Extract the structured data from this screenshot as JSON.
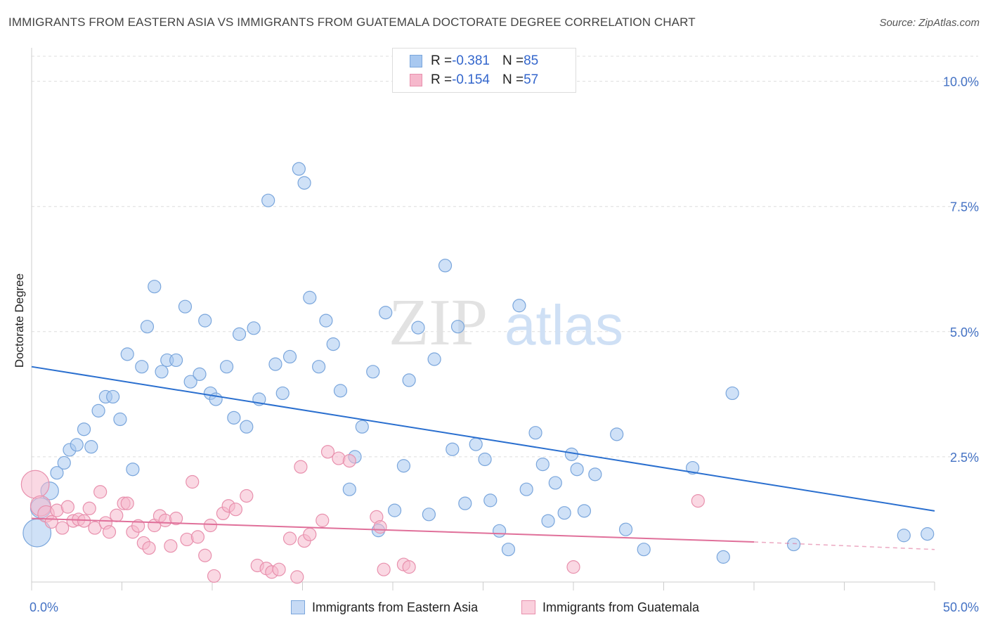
{
  "title": "IMMIGRANTS FROM EASTERN ASIA VS IMMIGRANTS FROM GUATEMALA DOCTORATE DEGREE CORRELATION CHART",
  "source": "Source: ZipAtlas.com",
  "watermark": {
    "zip": "ZIP",
    "atlas": "atlas"
  },
  "colors": {
    "blue_fill": "#a8c8f0",
    "blue_stroke": "#7aa6dc",
    "blue_line": "#2a6fcf",
    "pink_fill": "#f6b8cc",
    "pink_stroke": "#e890ad",
    "pink_line": "#e0709a",
    "grid": "#dddddd",
    "tick_label": "#4472c4"
  },
  "legend": {
    "blue": {
      "r_label": "R = ",
      "r_value": "-0.381",
      "n_label": "N = ",
      "n_value": "85"
    },
    "pink": {
      "r_label": "R = ",
      "r_value": "-0.154",
      "n_label": "N = ",
      "n_value": "57"
    }
  },
  "chart_data": {
    "type": "scatter",
    "title": "IMMIGRANTS FROM EASTERN ASIA VS IMMIGRANTS FROM GUATEMALA DOCTORATE DEGREE CORRELATION CHART",
    "xlabel": "",
    "ylabel": "Doctorate Degree",
    "xlim": [
      0,
      50
    ],
    "ylim": [
      0,
      10.5
    ],
    "x_tick_labels": [
      "0.0%",
      "50.0%"
    ],
    "y_ticks": [
      2.5,
      5.0,
      7.5,
      10.0
    ],
    "y_tick_labels": [
      "2.5%",
      "5.0%",
      "7.5%",
      "10.0%"
    ],
    "grid": true,
    "legend_position": "top-center",
    "series": [
      {
        "name": "Immigrants from Eastern Asia",
        "color": "#a8c8f0",
        "trend": {
          "x": [
            0,
            50
          ],
          "y": [
            4.3,
            1.42
          ]
        },
        "points": [
          {
            "x": 0.3,
            "y": 0.98,
            "s": 2.2
          },
          {
            "x": 0.5,
            "y": 1.48,
            "s": 1.6
          },
          {
            "x": 1.0,
            "y": 1.82,
            "s": 1.4
          },
          {
            "x": 1.4,
            "y": 2.18
          },
          {
            "x": 1.8,
            "y": 2.38
          },
          {
            "x": 2.1,
            "y": 2.64
          },
          {
            "x": 2.5,
            "y": 2.74
          },
          {
            "x": 2.9,
            "y": 3.05
          },
          {
            "x": 3.3,
            "y": 2.7
          },
          {
            "x": 3.7,
            "y": 3.42
          },
          {
            "x": 4.1,
            "y": 3.7
          },
          {
            "x": 4.5,
            "y": 3.7
          },
          {
            "x": 4.9,
            "y": 3.25
          },
          {
            "x": 5.3,
            "y": 4.55
          },
          {
            "x": 5.6,
            "y": 2.25
          },
          {
            "x": 6.1,
            "y": 4.3
          },
          {
            "x": 6.4,
            "y": 5.1
          },
          {
            "x": 6.8,
            "y": 5.9
          },
          {
            "x": 7.2,
            "y": 4.2
          },
          {
            "x": 7.5,
            "y": 4.43
          },
          {
            "x": 8.0,
            "y": 4.43
          },
          {
            "x": 8.5,
            "y": 5.5
          },
          {
            "x": 8.8,
            "y": 4.0
          },
          {
            "x": 9.3,
            "y": 4.15
          },
          {
            "x": 9.6,
            "y": 5.22
          },
          {
            "x": 9.9,
            "y": 3.77
          },
          {
            "x": 10.2,
            "y": 3.65
          },
          {
            "x": 10.8,
            "y": 4.3
          },
          {
            "x": 11.2,
            "y": 3.28
          },
          {
            "x": 11.5,
            "y": 4.95
          },
          {
            "x": 11.9,
            "y": 3.1
          },
          {
            "x": 12.3,
            "y": 5.07
          },
          {
            "x": 12.6,
            "y": 3.65
          },
          {
            "x": 13.1,
            "y": 7.62
          },
          {
            "x": 13.5,
            "y": 4.35
          },
          {
            "x": 13.9,
            "y": 3.77
          },
          {
            "x": 14.3,
            "y": 4.5
          },
          {
            "x": 14.8,
            "y": 8.25
          },
          {
            "x": 15.1,
            "y": 7.97
          },
          {
            "x": 15.4,
            "y": 5.68
          },
          {
            "x": 15.9,
            "y": 4.3
          },
          {
            "x": 16.3,
            "y": 5.22
          },
          {
            "x": 16.7,
            "y": 4.75
          },
          {
            "x": 17.1,
            "y": 3.82
          },
          {
            "x": 17.6,
            "y": 1.85
          },
          {
            "x": 17.9,
            "y": 2.5
          },
          {
            "x": 18.3,
            "y": 3.1
          },
          {
            "x": 18.9,
            "y": 4.2
          },
          {
            "x": 19.2,
            "y": 1.03
          },
          {
            "x": 19.6,
            "y": 5.38
          },
          {
            "x": 20.1,
            "y": 1.43
          },
          {
            "x": 20.6,
            "y": 2.32
          },
          {
            "x": 20.9,
            "y": 4.03
          },
          {
            "x": 21.4,
            "y": 5.08
          },
          {
            "x": 22.0,
            "y": 1.35
          },
          {
            "x": 22.3,
            "y": 4.45
          },
          {
            "x": 22.9,
            "y": 6.32
          },
          {
            "x": 23.3,
            "y": 2.65
          },
          {
            "x": 23.6,
            "y": 5.1
          },
          {
            "x": 24.0,
            "y": 1.57
          },
          {
            "x": 24.6,
            "y": 2.75
          },
          {
            "x": 25.1,
            "y": 2.45
          },
          {
            "x": 25.4,
            "y": 1.63
          },
          {
            "x": 25.9,
            "y": 1.02
          },
          {
            "x": 26.4,
            "y": 0.65
          },
          {
            "x": 27.0,
            "y": 5.52
          },
          {
            "x": 27.4,
            "y": 1.85
          },
          {
            "x": 27.9,
            "y": 2.98
          },
          {
            "x": 28.3,
            "y": 2.35
          },
          {
            "x": 28.6,
            "y": 1.22
          },
          {
            "x": 29.0,
            "y": 1.98
          },
          {
            "x": 29.5,
            "y": 1.38
          },
          {
            "x": 29.9,
            "y": 2.55
          },
          {
            "x": 30.2,
            "y": 2.25
          },
          {
            "x": 30.6,
            "y": 1.42
          },
          {
            "x": 31.2,
            "y": 2.15
          },
          {
            "x": 32.4,
            "y": 2.95
          },
          {
            "x": 32.9,
            "y": 1.05
          },
          {
            "x": 33.9,
            "y": 0.65
          },
          {
            "x": 36.6,
            "y": 2.28
          },
          {
            "x": 38.3,
            "y": 0.5
          },
          {
            "x": 38.8,
            "y": 3.77
          },
          {
            "x": 42.2,
            "y": 0.75
          },
          {
            "x": 48.3,
            "y": 0.93
          },
          {
            "x": 49.6,
            "y": 0.96
          }
        ]
      },
      {
        "name": "Immigrants from Guatemala",
        "color": "#f6b8cc",
        "trend": {
          "x": [
            0,
            40
          ],
          "y": [
            1.27,
            0.8
          ],
          "dashed_to": {
            "x": 50,
            "y": 0.65
          }
        },
        "points": [
          {
            "x": 0.2,
            "y": 1.95,
            "s": 2.2
          },
          {
            "x": 0.5,
            "y": 1.52,
            "s": 1.6
          },
          {
            "x": 0.8,
            "y": 1.36,
            "s": 1.3
          },
          {
            "x": 1.1,
            "y": 1.2
          },
          {
            "x": 1.4,
            "y": 1.43
          },
          {
            "x": 1.7,
            "y": 1.08
          },
          {
            "x": 2.0,
            "y": 1.5
          },
          {
            "x": 2.3,
            "y": 1.22
          },
          {
            "x": 2.6,
            "y": 1.25
          },
          {
            "x": 2.9,
            "y": 1.22
          },
          {
            "x": 3.2,
            "y": 1.47
          },
          {
            "x": 3.5,
            "y": 1.08
          },
          {
            "x": 3.8,
            "y": 1.8
          },
          {
            "x": 4.1,
            "y": 1.18
          },
          {
            "x": 4.3,
            "y": 1.0
          },
          {
            "x": 4.7,
            "y": 1.33
          },
          {
            "x": 5.1,
            "y": 1.57
          },
          {
            "x": 5.3,
            "y": 1.57
          },
          {
            "x": 5.6,
            "y": 1.0
          },
          {
            "x": 5.9,
            "y": 1.12
          },
          {
            "x": 6.2,
            "y": 0.78
          },
          {
            "x": 6.5,
            "y": 0.68
          },
          {
            "x": 6.8,
            "y": 1.13
          },
          {
            "x": 7.1,
            "y": 1.32
          },
          {
            "x": 7.4,
            "y": 1.23
          },
          {
            "x": 7.7,
            "y": 0.72
          },
          {
            "x": 8.0,
            "y": 1.27
          },
          {
            "x": 8.6,
            "y": 0.85
          },
          {
            "x": 8.9,
            "y": 2.0
          },
          {
            "x": 9.2,
            "y": 0.9
          },
          {
            "x": 9.6,
            "y": 0.53
          },
          {
            "x": 9.9,
            "y": 1.13
          },
          {
            "x": 10.1,
            "y": 0.12
          },
          {
            "x": 10.6,
            "y": 1.37
          },
          {
            "x": 10.9,
            "y": 1.52
          },
          {
            "x": 11.3,
            "y": 1.45
          },
          {
            "x": 11.9,
            "y": 1.72
          },
          {
            "x": 12.5,
            "y": 0.33
          },
          {
            "x": 13.0,
            "y": 0.27
          },
          {
            "x": 13.3,
            "y": 0.2
          },
          {
            "x": 13.7,
            "y": 0.25
          },
          {
            "x": 14.3,
            "y": 0.87
          },
          {
            "x": 14.7,
            "y": 0.1
          },
          {
            "x": 14.9,
            "y": 2.3
          },
          {
            "x": 15.1,
            "y": 0.82
          },
          {
            "x": 15.4,
            "y": 0.95
          },
          {
            "x": 16.1,
            "y": 1.23
          },
          {
            "x": 16.4,
            "y": 2.6
          },
          {
            "x": 17.0,
            "y": 2.47
          },
          {
            "x": 17.6,
            "y": 2.42
          },
          {
            "x": 19.1,
            "y": 1.3
          },
          {
            "x": 19.3,
            "y": 1.1
          },
          {
            "x": 19.5,
            "y": 0.25
          },
          {
            "x": 20.6,
            "y": 0.35
          },
          {
            "x": 20.9,
            "y": 0.3
          },
          {
            "x": 30.0,
            "y": 0.3
          },
          {
            "x": 36.9,
            "y": 1.62
          }
        ]
      }
    ]
  }
}
